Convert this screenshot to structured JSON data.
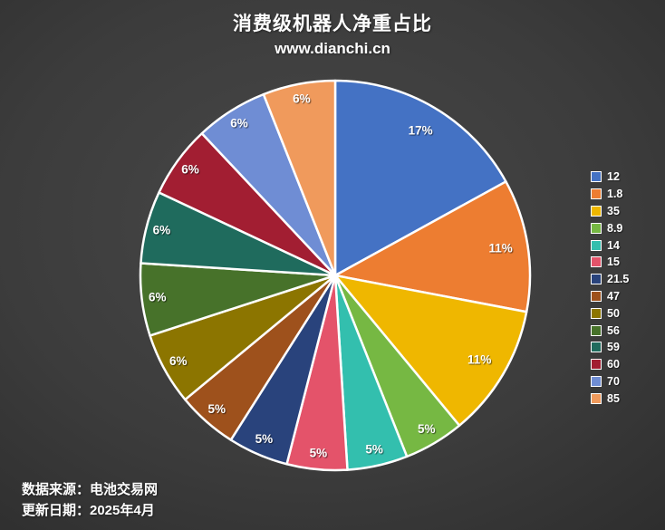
{
  "header": {
    "title": "消费级机器人净重占比",
    "subtitle": "www.dianchi.cn"
  },
  "footer": {
    "source_line": "数据来源：电池交易网",
    "updated_line": "更新日期：2025年4月"
  },
  "chart_data": {
    "type": "pie",
    "title": "消费级机器人净重占比",
    "subtitle": "www.dianchi.cn",
    "legend_position": "right",
    "start_angle_deg": 0,
    "direction": "clockwise",
    "value_label_format": "percent",
    "slices": [
      {
        "label": "12",
        "percent": 17,
        "color": "#4472C4"
      },
      {
        "label": "1.8",
        "percent": 11,
        "color": "#ED7D31"
      },
      {
        "label": "35",
        "percent": 11,
        "color": "#EFB700"
      },
      {
        "label": "8.9",
        "percent": 5,
        "color": "#76B843"
      },
      {
        "label": "14",
        "percent": 5,
        "color": "#33BFAE"
      },
      {
        "label": "15",
        "percent": 5,
        "color": "#E4536A"
      },
      {
        "label": "21.5",
        "percent": 5,
        "color": "#29437C"
      },
      {
        "label": "47",
        "percent": 5,
        "color": "#9E511C"
      },
      {
        "label": "50",
        "percent": 6,
        "color": "#8C7500"
      },
      {
        "label": "56",
        "percent": 6,
        "color": "#47722A"
      },
      {
        "label": "59",
        "percent": 6,
        "color": "#1F6B5D"
      },
      {
        "label": "60",
        "percent": 6,
        "color": "#A21E32"
      },
      {
        "label": "70",
        "percent": 6,
        "color": "#6F8DD4"
      },
      {
        "label": "85",
        "percent": 6,
        "color": "#F09A5C"
      }
    ]
  }
}
